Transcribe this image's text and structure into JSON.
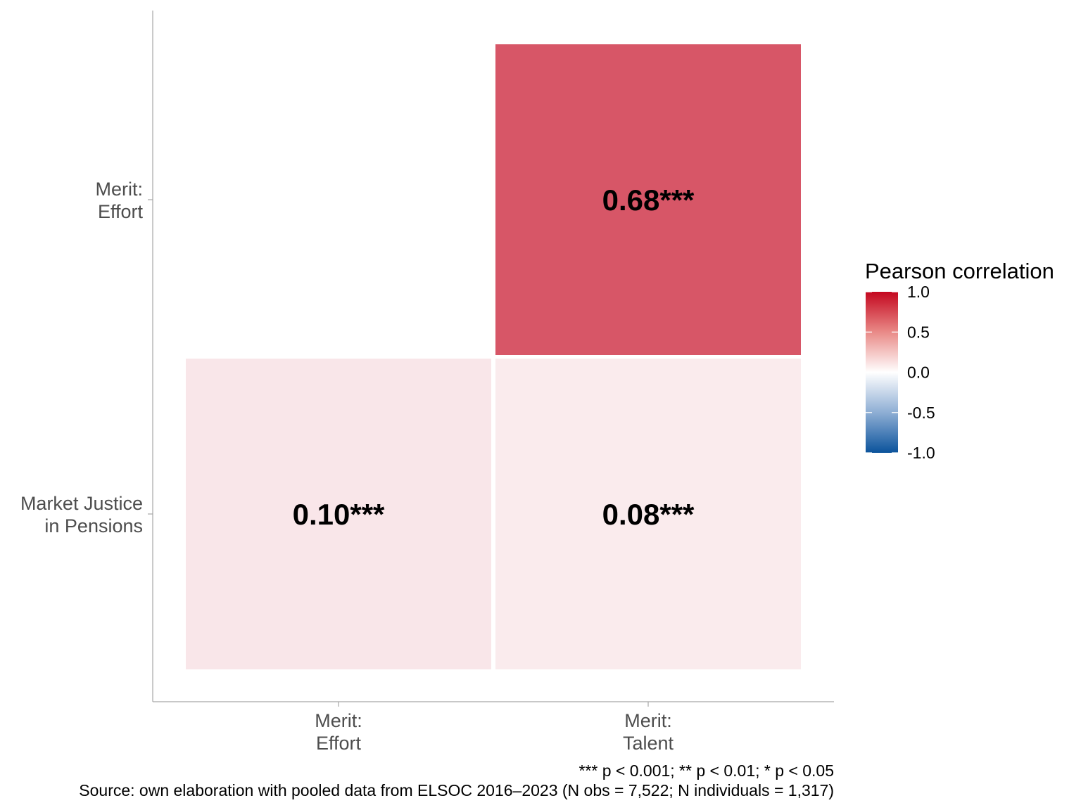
{
  "chart_data": {
    "type": "heatmap",
    "x_categories": [
      {
        "line1": "Merit:",
        "line2": "Effort"
      },
      {
        "line1": "Merit:",
        "line2": "Talent"
      }
    ],
    "y_categories": [
      {
        "line1": "Market Justice",
        "line2": "in Pensions"
      },
      {
        "line1": "Merit:",
        "line2": "Effort"
      }
    ],
    "cells": [
      {
        "x": 0,
        "y": 0,
        "value": 0.1,
        "label": "0.10***"
      },
      {
        "x": 1,
        "y": 0,
        "value": 0.08,
        "label": "0.08***"
      },
      {
        "x": 1,
        "y": 1,
        "value": 0.68,
        "label": "0.68***"
      }
    ],
    "legend": {
      "title": "Pearson correlation",
      "range": [
        -1.0,
        1.0
      ],
      "ticks": [
        {
          "value": 1.0,
          "label": "1.0"
        },
        {
          "value": 0.5,
          "label": "0.5"
        },
        {
          "value": 0.0,
          "label": "0.0"
        },
        {
          "value": -0.5,
          "label": "-0.5"
        },
        {
          "value": -1.0,
          "label": "-1.0"
        }
      ],
      "colors": {
        "low": "#0b539c",
        "mid": "#ffffff",
        "high": "#c4071f"
      }
    },
    "caption_line1": "*** p < 0.001; ** p < 0.01; * p < 0.05",
    "caption_line2": "Source: own elaboration with pooled data from ELSOC 2016–2023 (N obs = 7,522; N individuals = 1,317)"
  }
}
